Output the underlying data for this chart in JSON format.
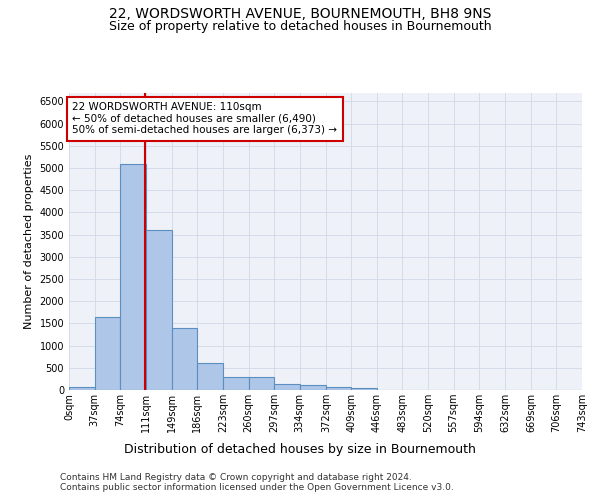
{
  "title": "22, WORDSWORTH AVENUE, BOURNEMOUTH, BH8 9NS",
  "subtitle": "Size of property relative to detached houses in Bournemouth",
  "xlabel": "Distribution of detached houses by size in Bournemouth",
  "ylabel": "Number of detached properties",
  "footer_line1": "Contains HM Land Registry data © Crown copyright and database right 2024.",
  "footer_line2": "Contains public sector information licensed under the Open Government Licence v3.0.",
  "bar_edges": [
    0,
    37,
    74,
    111,
    149,
    186,
    223,
    260,
    297,
    334,
    372,
    409,
    446,
    483,
    520,
    557,
    594,
    632,
    669,
    706,
    743
  ],
  "bar_heights": [
    75,
    1650,
    5080,
    3600,
    1400,
    610,
    295,
    295,
    145,
    110,
    75,
    45,
    10,
    0,
    0,
    0,
    0,
    0,
    0,
    0
  ],
  "bar_color": "#aec6e8",
  "bar_edge_color": "#5a8fc0",
  "bar_linewidth": 0.8,
  "vline_x": 110,
  "vline_color": "#cc0000",
  "vline_linewidth": 1.5,
  "annotation_text": "22 WORDSWORTH AVENUE: 110sqm\n← 50% of detached houses are smaller (6,490)\n50% of semi-detached houses are larger (6,373) →",
  "annotation_box_color": "#ffffff",
  "annotation_box_edgecolor": "#cc0000",
  "ylim": [
    0,
    6700
  ],
  "yticks": [
    0,
    500,
    1000,
    1500,
    2000,
    2500,
    3000,
    3500,
    4000,
    4500,
    5000,
    5500,
    6000,
    6500
  ],
  "tick_labels": [
    "0sqm",
    "37sqm",
    "74sqm",
    "111sqm",
    "149sqm",
    "186sqm",
    "223sqm",
    "260sqm",
    "297sqm",
    "334sqm",
    "372sqm",
    "409sqm",
    "446sqm",
    "483sqm",
    "520sqm",
    "557sqm",
    "594sqm",
    "632sqm",
    "669sqm",
    "706sqm",
    "743sqm"
  ],
  "grid_color": "#d0d8e8",
  "bg_color": "#eef2f8",
  "fig_bg_color": "#ffffff",
  "title_fontsize": 10,
  "subtitle_fontsize": 9,
  "xlabel_fontsize": 9,
  "ylabel_fontsize": 8,
  "tick_fontsize": 7,
  "annotation_fontsize": 7.5,
  "footer_fontsize": 6.5
}
